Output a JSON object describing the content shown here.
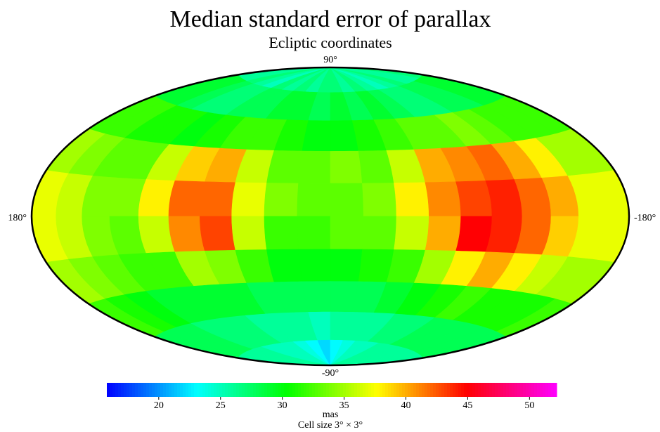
{
  "chart_data": {
    "type": "skymap",
    "title": "Median standard error of parallax",
    "subtitle": "Ecliptic coordinates",
    "lat_labels": [
      "90°",
      "-90°"
    ],
    "lon_labels": [
      "180°",
      "-180°"
    ],
    "x": [
      171,
      153,
      135,
      117,
      99,
      81,
      63,
      45,
      27,
      9,
      -9,
      -27,
      -45,
      -63,
      -81,
      -99,
      -117,
      -135,
      -153,
      -171
    ],
    "y": [
      81,
      63,
      45,
      27,
      9,
      -9,
      -27,
      -45,
      -63,
      -81
    ],
    "values": [
      [
        26,
        26,
        27,
        26,
        25,
        27,
        26,
        27,
        26,
        27,
        27,
        26,
        27,
        26,
        25,
        26,
        27,
        26,
        26,
        27
      ],
      [
        29,
        29,
        28,
        27,
        27,
        28,
        28,
        29,
        29,
        28,
        29,
        28,
        29,
        28,
        27,
        27,
        28,
        28,
        29,
        29
      ],
      [
        32,
        32,
        31,
        31,
        30,
        31,
        32,
        32,
        31,
        30,
        30,
        31,
        32,
        33,
        33,
        34,
        33,
        32,
        32,
        32
      ],
      [
        35,
        34,
        33,
        33,
        36,
        39,
        40,
        36,
        33,
        33,
        34,
        33,
        36,
        40,
        41,
        42,
        40,
        38,
        35,
        35
      ],
      [
        37,
        36,
        34,
        34,
        38,
        42,
        42,
        37,
        34,
        33,
        33,
        34,
        38,
        41,
        43,
        44,
        42,
        40,
        37,
        37
      ],
      [
        37,
        36,
        34,
        33,
        36,
        41,
        43,
        36,
        32,
        32,
        33,
        33,
        36,
        40,
        45,
        44,
        42,
        39,
        37,
        37
      ],
      [
        35,
        34,
        33,
        32,
        32,
        35,
        34,
        32,
        30,
        30,
        30,
        31,
        32,
        35,
        38,
        40,
        38,
        36,
        35,
        35
      ],
      [
        32,
        31,
        30,
        29,
        29,
        29,
        29,
        28,
        28,
        28,
        28,
        28,
        29,
        30,
        31,
        32,
        31,
        31,
        31,
        32
      ],
      [
        28,
        28,
        28,
        27,
        27,
        27,
        26,
        26,
        26,
        25,
        26,
        26,
        26,
        27,
        27,
        28,
        28,
        28,
        28,
        28
      ],
      [
        26,
        26,
        26,
        26,
        25,
        25,
        25,
        24,
        23,
        22,
        23,
        24,
        25,
        25,
        26,
        26,
        26,
        26,
        26,
        26
      ]
    ],
    "colormap": [
      "#0000ff",
      "#00ffff",
      "#00ff00",
      "#ffff00",
      "#ff0000",
      "#ff00ff"
    ],
    "clim": [
      15.8,
      52.2
    ],
    "cticks": [
      20,
      25,
      30,
      35,
      40,
      45,
      50
    ],
    "colorbar_label": "mas",
    "note": "Cell size 3° × 3°"
  }
}
